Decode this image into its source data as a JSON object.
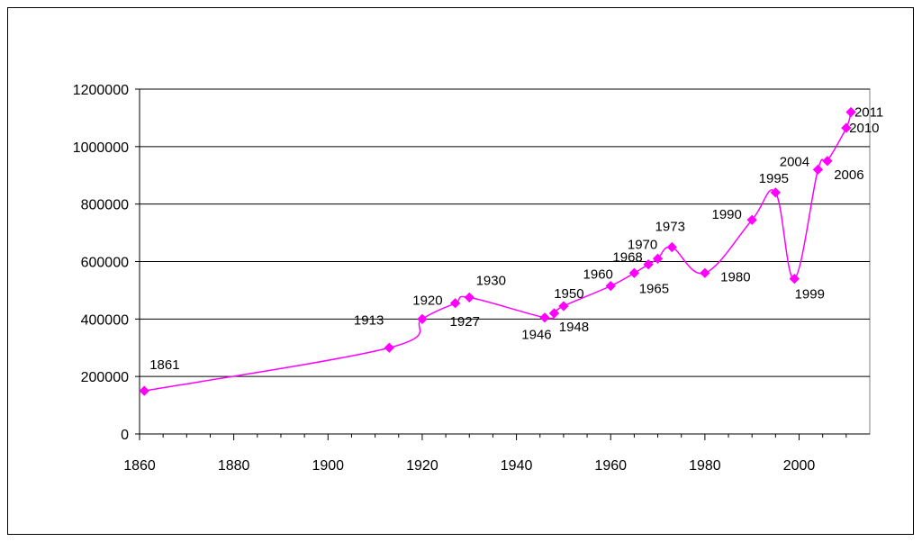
{
  "chart_data": {
    "type": "line",
    "title": "",
    "xlabel": "",
    "ylabel": "",
    "xlim": [
      1860,
      2015
    ],
    "ylim": [
      0,
      1200000
    ],
    "x_ticks": [
      1860,
      1880,
      1900,
      1920,
      1940,
      1960,
      1980,
      2000
    ],
    "y_ticks": [
      0,
      200000,
      400000,
      600000,
      800000,
      1000000,
      1200000
    ],
    "grid": "horizontal",
    "series_color": "#ff00ff",
    "points": [
      {
        "x": 1861,
        "y": 150000,
        "label": "1861"
      },
      {
        "x": 1913,
        "y": 300000,
        "label": "1913"
      },
      {
        "x": 1920,
        "y": 400000,
        "label": "1920"
      },
      {
        "x": 1927,
        "y": 455000,
        "label": "1927"
      },
      {
        "x": 1930,
        "y": 475000,
        "label": "1930"
      },
      {
        "x": 1946,
        "y": 405000,
        "label": "1946"
      },
      {
        "x": 1948,
        "y": 420000,
        "label": "1948"
      },
      {
        "x": 1950,
        "y": 445000,
        "label": "1950"
      },
      {
        "x": 1960,
        "y": 515000,
        "label": "1960"
      },
      {
        "x": 1965,
        "y": 560000,
        "label": "1965"
      },
      {
        "x": 1968,
        "y": 590000,
        "label": "1968"
      },
      {
        "x": 1970,
        "y": 610000,
        "label": "1970"
      },
      {
        "x": 1973,
        "y": 650000,
        "label": "1973"
      },
      {
        "x": 1980,
        "y": 560000,
        "label": "1980"
      },
      {
        "x": 1990,
        "y": 745000,
        "label": "1990"
      },
      {
        "x": 1995,
        "y": 840000,
        "label": "1995"
      },
      {
        "x": 1999,
        "y": 540000,
        "label": "1999"
      },
      {
        "x": 2004,
        "y": 920000,
        "label": "2004"
      },
      {
        "x": 2006,
        "y": 950000,
        "label": "2006"
      },
      {
        "x": 2010,
        "y": 1065000,
        "label": "2010"
      },
      {
        "x": 2011,
        "y": 1120000,
        "label": "2011"
      }
    ]
  }
}
